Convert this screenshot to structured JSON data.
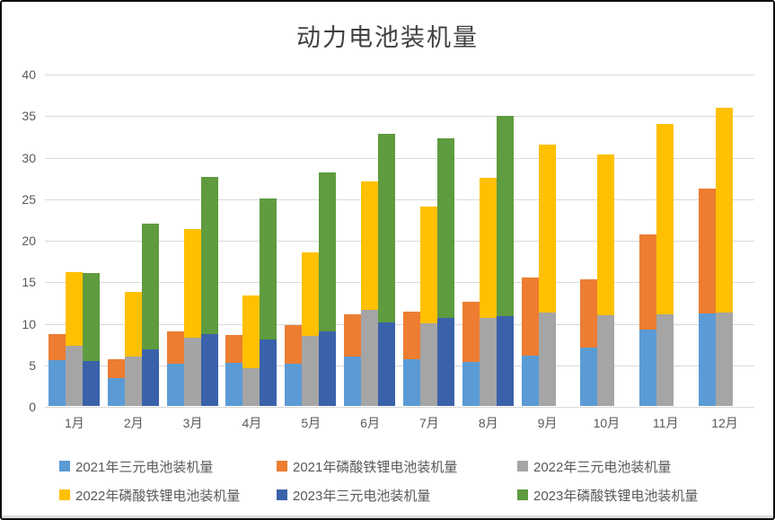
{
  "chart_data": {
    "type": "bar",
    "subtype": "grouped-stacked",
    "title": "动力电池装机量",
    "xlabel": "",
    "ylabel": "",
    "ylim": [
      0,
      40
    ],
    "yticks": [
      0,
      5,
      10,
      15,
      20,
      25,
      30,
      35,
      40
    ],
    "grid": true,
    "legend_position": "bottom",
    "categories": [
      "1月",
      "2月",
      "3月",
      "4月",
      "5月",
      "6月",
      "7月",
      "8月",
      "9月",
      "10月",
      "11月",
      "12月"
    ],
    "series": [
      {
        "name": "2021年三元电池装机量",
        "stack": "2021",
        "color": "#5B9BD5",
        "values": [
          5.5,
          3.4,
          5.1,
          5.2,
          5.1,
          5.9,
          5.6,
          5.3,
          6.1,
          7.0,
          9.2,
          11.1
        ]
      },
      {
        "name": "2021年磷酸铁锂电池装机量",
        "stack": "2021",
        "color": "#ED7D31",
        "values": [
          3.2,
          2.2,
          3.9,
          3.3,
          4.6,
          5.1,
          5.7,
          7.2,
          9.4,
          8.2,
          11.4,
          15.1
        ]
      },
      {
        "name": "2022年三元电池装机量",
        "stack": "2022",
        "color": "#A5A5A5",
        "values": [
          7.2,
          6.0,
          8.2,
          4.5,
          8.4,
          11.6,
          9.9,
          10.6,
          11.2,
          10.9,
          11.0,
          11.2
        ]
      },
      {
        "name": "2022年磷酸铁锂电池装机量",
        "stack": "2022",
        "color": "#FFC000",
        "values": [
          8.9,
          7.7,
          13.1,
          8.8,
          10.1,
          15.4,
          14.1,
          16.9,
          20.3,
          19.4,
          23.0,
          24.7
        ]
      },
      {
        "name": "2023年三元电池装机量",
        "stack": "2023",
        "color": "#3A62AA",
        "values": [
          5.4,
          6.8,
          8.6,
          8.0,
          9.0,
          10.1,
          10.6,
          10.8,
          null,
          null,
          null,
          null
        ]
      },
      {
        "name": "2023年磷酸铁锂电池装机量",
        "stack": "2023",
        "color": "#5F9B3F",
        "values": [
          10.6,
          15.2,
          19.0,
          17.0,
          19.1,
          22.7,
          21.6,
          24.1,
          null,
          null,
          null,
          null
        ]
      }
    ],
    "colors": {
      "gridline": "#D9D9D9",
      "title_text": "#404040",
      "axis_text": "#595959",
      "legend_text": "#595959",
      "background": "#FFFFFF"
    }
  }
}
